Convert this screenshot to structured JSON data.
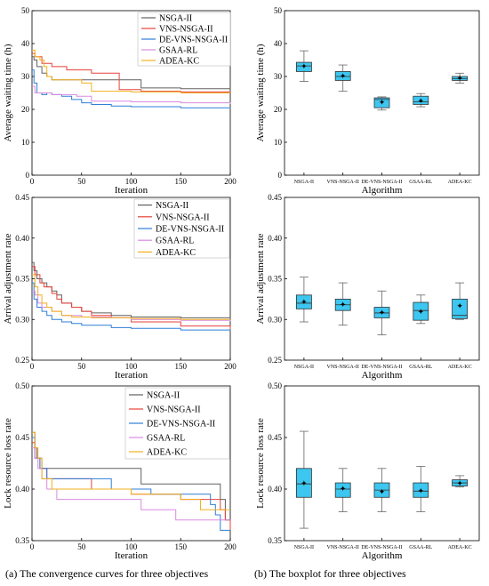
{
  "captions": {
    "left": "(a) The convergence curves for three objectives",
    "right": "(b) The boxplot for three objectives"
  },
  "colors": {
    "NSGA-II": "#606060",
    "VNS-NSGA-II": "#e8423a",
    "DE-VNS-NSGA-II": "#2f7fd8",
    "GSAA-RL": "#d98be0",
    "ADEA-KC": "#f2b01e",
    "box": "#3cc6f0"
  },
  "chart_data": [
    {
      "type": "line",
      "xlabel": "Iteration",
      "ylabel": "Average waiting time (h)",
      "xlim": [
        0,
        200
      ],
      "ylim": [
        0,
        50
      ],
      "xticks": [
        0,
        50,
        100,
        150,
        200
      ],
      "yticks": [
        0,
        10,
        20,
        30,
        40,
        50
      ],
      "grid": false,
      "legend": "top-right",
      "series": [
        {
          "name": "NSGA-II",
          "x": [
            0,
            2,
            5,
            10,
            15,
            20,
            30,
            40,
            60,
            90,
            110,
            150,
            200
          ],
          "y": [
            36,
            35,
            33,
            31,
            30,
            29,
            29,
            29,
            29,
            29,
            26.5,
            26.3,
            26.2
          ]
        },
        {
          "name": "VNS-NSGA-II",
          "x": [
            0,
            3,
            10,
            20,
            35,
            45,
            60,
            85,
            88,
            95,
            110,
            150,
            200
          ],
          "y": [
            37,
            36,
            34,
            33,
            32,
            32,
            31,
            31,
            26,
            26,
            25.5,
            25.3,
            25.2
          ]
        },
        {
          "name": "DE-VNS-NSGA-II",
          "x": [
            0,
            2,
            5,
            10,
            15,
            20,
            30,
            40,
            50,
            60,
            80,
            100,
            150,
            200
          ],
          "y": [
            32,
            28,
            25,
            24.5,
            25,
            24.5,
            24,
            23,
            22,
            21.5,
            21,
            20.8,
            20.5,
            20.3
          ]
        },
        {
          "name": "GSAA-RL",
          "x": [
            0,
            3,
            6,
            10,
            20,
            30,
            45,
            60,
            100,
            150,
            200
          ],
          "y": [
            27,
            25,
            25,
            25,
            24.5,
            24.5,
            24,
            22.5,
            22.3,
            22,
            21.7
          ]
        },
        {
          "name": "ADEA-KC",
          "x": [
            0,
            3,
            8,
            12,
            15,
            20,
            30,
            50,
            60,
            100,
            150,
            200
          ],
          "y": [
            38,
            36,
            35,
            33,
            30,
            29,
            29,
            28,
            25.5,
            25.3,
            25,
            25
          ]
        }
      ]
    },
    {
      "type": "box",
      "xlabel": "Algorithm",
      "ylabel": "Average waiting time (h)",
      "ylim": [
        0,
        50
      ],
      "yticks": [
        0,
        10,
        20,
        30,
        40,
        50
      ],
      "categories": [
        "NSGA-II",
        "VNS-NSGA-II",
        "DE-VNS-NSGA-II",
        "GSAA-RL",
        "ADEA-KC"
      ],
      "boxes": [
        {
          "min": 28.5,
          "q1": 31.5,
          "median": 33.2,
          "q3": 34.3,
          "max": 37.8,
          "mean": 33.0
        },
        {
          "min": 25.5,
          "q1": 28.8,
          "median": 30.0,
          "q3": 31.5,
          "max": 33.5,
          "mean": 30.0
        },
        {
          "min": 19.8,
          "q1": 20.5,
          "median": 23.0,
          "q3": 23.5,
          "max": 23.8,
          "mean": 22.0
        },
        {
          "min": 20.8,
          "q1": 21.5,
          "median": 22.3,
          "q3": 24.0,
          "max": 24.8,
          "mean": 22.5
        },
        {
          "min": 28.0,
          "q1": 28.8,
          "median": 29.3,
          "q3": 30.0,
          "max": 31.0,
          "mean": 29.3
        }
      ]
    },
    {
      "type": "line",
      "xlabel": "Iteration",
      "ylabel": "Arrival adjustment rate",
      "xlim": [
        0,
        200
      ],
      "ylim": [
        0.25,
        0.45
      ],
      "xticks": [
        0,
        50,
        100,
        150,
        200
      ],
      "yticks": [
        "0.25",
        "0.30",
        "0.35",
        "0.40",
        "0.45"
      ],
      "grid": false,
      "legend": "top-right",
      "series": [
        {
          "name": "NSGA-II",
          "x": [
            0,
            2,
            5,
            10,
            15,
            20,
            25,
            30,
            40,
            50,
            60,
            80,
            100,
            150,
            200
          ],
          "y": [
            0.37,
            0.36,
            0.35,
            0.345,
            0.34,
            0.335,
            0.33,
            0.32,
            0.315,
            0.31,
            0.308,
            0.305,
            0.303,
            0.302,
            0.301
          ]
        },
        {
          "name": "VNS-NSGA-II",
          "x": [
            0,
            3,
            8,
            12,
            20,
            25,
            30,
            40,
            50,
            60,
            80,
            100,
            150,
            200
          ],
          "y": [
            0.365,
            0.355,
            0.345,
            0.34,
            0.332,
            0.325,
            0.32,
            0.315,
            0.31,
            0.305,
            0.302,
            0.297,
            0.292,
            0.288
          ]
        },
        {
          "name": "DE-VNS-NSGA-II",
          "x": [
            0,
            2,
            5,
            10,
            15,
            20,
            30,
            40,
            50,
            80,
            100,
            150,
            200
          ],
          "y": [
            0.345,
            0.325,
            0.315,
            0.31,
            0.305,
            0.3,
            0.297,
            0.295,
            0.293,
            0.29,
            0.289,
            0.287,
            0.286
          ]
        },
        {
          "name": "GSAA-RL",
          "x": [
            0,
            3,
            6,
            10,
            20,
            30,
            50,
            80,
            100,
            150,
            200
          ],
          "y": [
            0.335,
            0.33,
            0.32,
            0.315,
            0.31,
            0.305,
            0.303,
            0.302,
            0.3,
            0.299,
            0.298
          ]
        },
        {
          "name": "ADEA-KC",
          "x": [
            0,
            3,
            6,
            10,
            15,
            20,
            30,
            40,
            60,
            100,
            150,
            200
          ],
          "y": [
            0.355,
            0.34,
            0.33,
            0.32,
            0.315,
            0.31,
            0.305,
            0.303,
            0.302,
            0.301,
            0.3,
            0.3
          ]
        }
      ]
    },
    {
      "type": "box",
      "xlabel": "Algorithm",
      "ylabel": "Arrival adjustment rate",
      "ylim": [
        0.25,
        0.45
      ],
      "yticks": [
        "0.25",
        "0.30",
        "0.35",
        "0.40",
        "0.45"
      ],
      "categories": [
        "NSGA-II",
        "VNS-NSGA-II",
        "DE-VNS-NSGA-II",
        "GSAA-RL",
        "ADEA-KC"
      ],
      "boxes": [
        {
          "min": 0.297,
          "q1": 0.313,
          "median": 0.32,
          "q3": 0.33,
          "max": 0.352,
          "mean": 0.321
        },
        {
          "min": 0.293,
          "q1": 0.311,
          "median": 0.318,
          "q3": 0.325,
          "max": 0.345,
          "mean": 0.318
        },
        {
          "min": 0.281,
          "q1": 0.302,
          "median": 0.308,
          "q3": 0.315,
          "max": 0.335,
          "mean": 0.308
        },
        {
          "min": 0.295,
          "q1": 0.299,
          "median": 0.311,
          "q3": 0.321,
          "max": 0.33,
          "mean": 0.309
        },
        {
          "min": 0.3,
          "q1": 0.301,
          "median": 0.305,
          "q3": 0.325,
          "max": 0.345,
          "mean": 0.316
        }
      ]
    },
    {
      "type": "line",
      "xlabel": "Iteration",
      "ylabel": "Lock resource loss rate",
      "xlim": [
        0,
        200
      ],
      "ylim": [
        0.35,
        0.5
      ],
      "xticks": [
        0,
        50,
        100,
        150,
        200
      ],
      "yticks": [
        "0.35",
        "0.40",
        "0.45",
        "0.50"
      ],
      "grid": false,
      "legend": "top-right",
      "series": [
        {
          "name": "NSGA-II",
          "x": [
            0,
            3,
            5,
            10,
            15,
            30,
            60,
            95,
            110,
            130,
            175,
            190,
            195,
            200
          ],
          "y": [
            0.455,
            0.44,
            0.43,
            0.42,
            0.42,
            0.42,
            0.42,
            0.42,
            0.405,
            0.405,
            0.405,
            0.39,
            0.37,
            0.37
          ]
        },
        {
          "name": "VNS-NSGA-II",
          "x": [
            0,
            3,
            8,
            15,
            30,
            60,
            90,
            100,
            110,
            150,
            190,
            195,
            200
          ],
          "y": [
            0.445,
            0.43,
            0.42,
            0.41,
            0.41,
            0.4,
            0.4,
            0.395,
            0.395,
            0.39,
            0.38,
            0.37,
            0.36
          ]
        },
        {
          "name": "DE-VNS-NSGA-II",
          "x": [
            0,
            3,
            8,
            15,
            30,
            60,
            80,
            100,
            120,
            180,
            185,
            190,
            200
          ],
          "y": [
            0.45,
            0.43,
            0.42,
            0.41,
            0.41,
            0.41,
            0.4,
            0.4,
            0.395,
            0.385,
            0.375,
            0.36,
            0.36
          ]
        },
        {
          "name": "GSAA-RL",
          "x": [
            0,
            3,
            6,
            10,
            15,
            25,
            50,
            70,
            110,
            140,
            145,
            150,
            190,
            200
          ],
          "y": [
            0.44,
            0.43,
            0.42,
            0.41,
            0.4,
            0.39,
            0.39,
            0.39,
            0.38,
            0.38,
            0.37,
            0.37,
            0.37,
            0.37
          ]
        },
        {
          "name": "ADEA-KC",
          "x": [
            0,
            3,
            6,
            10,
            20,
            40,
            50,
            80,
            100,
            150,
            170,
            200
          ],
          "y": [
            0.455,
            0.44,
            0.43,
            0.41,
            0.4,
            0.4,
            0.4,
            0.4,
            0.395,
            0.39,
            0.38,
            0.38
          ]
        }
      ]
    },
    {
      "type": "box",
      "xlabel": "Algorithm",
      "ylabel": "Lock resource loss rate",
      "ylim": [
        0.35,
        0.5
      ],
      "yticks": [
        "0.35",
        "0.40",
        "0.45",
        "0.50"
      ],
      "categories": [
        "NSGA-II",
        "VNS-NSGA-II",
        "DE-VNS-NSGA-II",
        "GSAA-RL",
        "ADEA-KC"
      ],
      "boxes": [
        {
          "min": 0.362,
          "q1": 0.392,
          "median": 0.405,
          "q3": 0.42,
          "max": 0.456,
          "mean": 0.405
        },
        {
          "min": 0.378,
          "q1": 0.392,
          "median": 0.4,
          "q3": 0.406,
          "max": 0.42,
          "mean": 0.4
        },
        {
          "min": 0.378,
          "q1": 0.392,
          "median": 0.399,
          "q3": 0.406,
          "max": 0.42,
          "mean": 0.397
        },
        {
          "min": 0.378,
          "q1": 0.392,
          "median": 0.398,
          "q3": 0.406,
          "max": 0.422,
          "mean": 0.398
        },
        {
          "min": 0.402,
          "q1": 0.403,
          "median": 0.406,
          "q3": 0.409,
          "max": 0.413,
          "mean": 0.405
        }
      ]
    }
  ]
}
